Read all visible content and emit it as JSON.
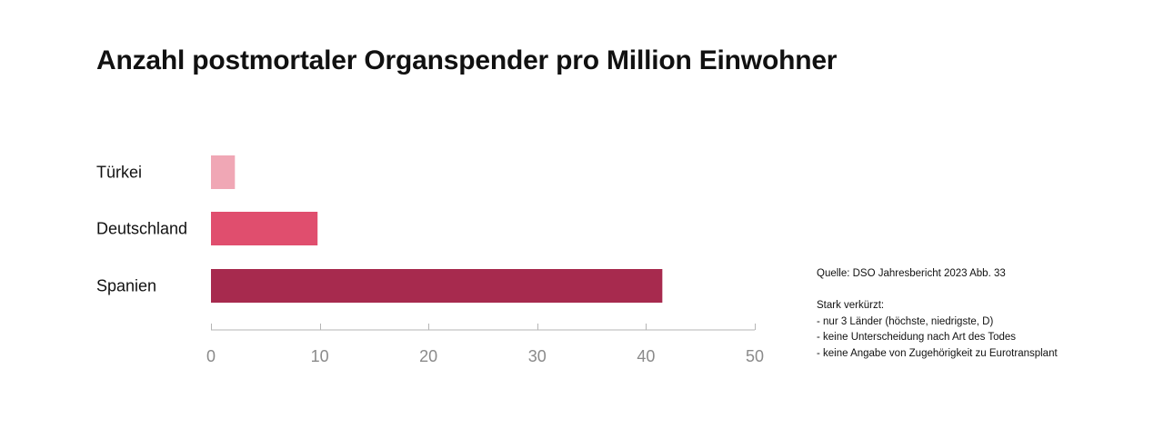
{
  "chart_data": {
    "type": "bar",
    "orientation": "horizontal",
    "title": "Anzahl postmortaler Organspender pro Million Einwohner",
    "categories": [
      "Türkei",
      "Deutschland",
      "Spanien"
    ],
    "values": [
      2.2,
      9.8,
      41.5
    ],
    "colors": [
      "#f0a7b5",
      "#e04e6e",
      "#a72a4e"
    ],
    "xlim": [
      0,
      50
    ],
    "xticks": [
      0,
      10,
      20,
      30,
      40,
      50
    ],
    "xlabel": "",
    "ylabel": "",
    "grid": false,
    "axis_color": "#b5b5b5"
  },
  "notes": {
    "source": "Quelle: DSO Jahresbericht 2023 Abb. 33",
    "heading": "Stark verkürzt:",
    "items": [
      "- nur 3 Länder (höchste, niedrigste, D)",
      "- keine Unterscheidung nach Art des Todes",
      "- keine Angabe von Zugehörigkeit zu Eurotransplant"
    ]
  }
}
